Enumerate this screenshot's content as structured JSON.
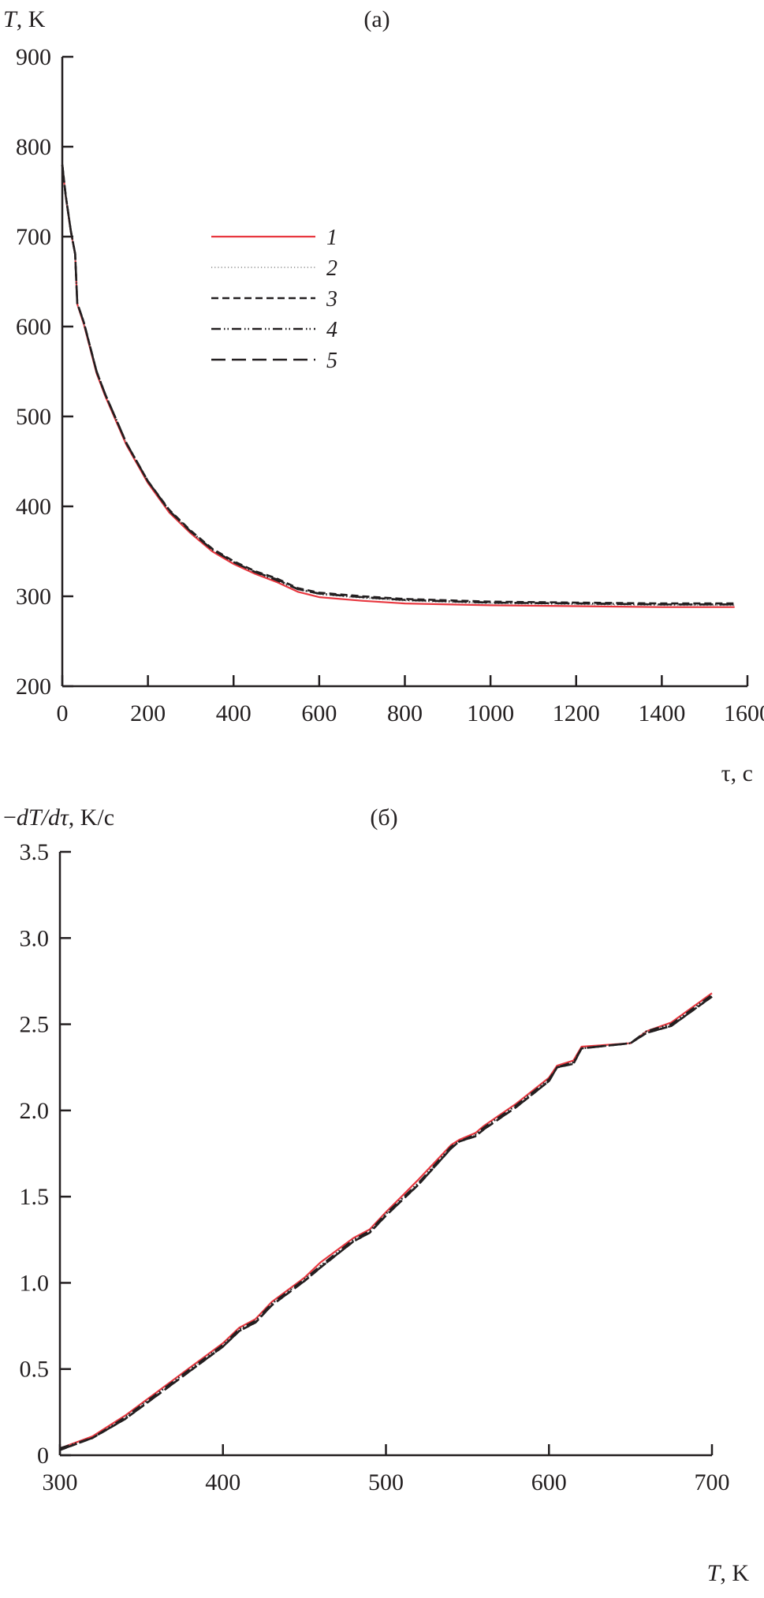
{
  "chart_data": [
    {
      "type": "line",
      "panel_label": "(a)",
      "ylabel_var": "T",
      "ylabel_unit": ", K",
      "xlabel": "τ, c",
      "xlim": [
        0,
        1600
      ],
      "ylim": [
        200,
        900
      ],
      "xticks": [
        0,
        200,
        400,
        600,
        800,
        1000,
        1200,
        1400,
        1600
      ],
      "yticks": [
        200,
        300,
        400,
        500,
        600,
        700,
        800,
        900
      ],
      "grid": false,
      "legend_placement": "upper-middle-left",
      "x": [
        0,
        8,
        20,
        30,
        35,
        50,
        80,
        100,
        150,
        200,
        250,
        300,
        350,
        400,
        450,
        500,
        550,
        600,
        700,
        800,
        1000,
        1200,
        1400,
        1570
      ],
      "series": [
        {
          "name": "1",
          "color": "#e8373f",
          "style": "solid",
          "values": [
            780,
            745,
            705,
            680,
            625,
            603,
            548,
            523,
            468,
            426,
            393,
            370,
            350,
            336,
            325,
            316,
            305,
            299,
            295,
            292,
            290,
            289,
            288,
            288
          ]
        },
        {
          "name": "2",
          "color": "#888888",
          "style": "dotted",
          "values": [
            780,
            746,
            706,
            681,
            626,
            605,
            550,
            525,
            470,
            428,
            395,
            372,
            352,
            338,
            327,
            318,
            308,
            302,
            298,
            295,
            292,
            291,
            290,
            290
          ]
        },
        {
          "name": "3",
          "color": "#231f20",
          "style": "dashed",
          "values": [
            780,
            746,
            706,
            681,
            626,
            605,
            550,
            525,
            470,
            428,
            396,
            373,
            353,
            339,
            328,
            320,
            309,
            304,
            300,
            297,
            294,
            293,
            292,
            292
          ]
        },
        {
          "name": "4",
          "color": "#231f20",
          "style": "dash-dot",
          "values": [
            780,
            746,
            706,
            681,
            626,
            605,
            550,
            525,
            470,
            428,
            395,
            372,
            352,
            338,
            327,
            318,
            308,
            303,
            299,
            296,
            293,
            292,
            291,
            291
          ]
        },
        {
          "name": "5",
          "color": "#231f20",
          "style": "long-dash",
          "values": [
            780,
            746,
            706,
            681,
            626,
            605,
            550,
            525,
            470,
            428,
            395,
            372,
            352,
            338,
            327,
            319,
            308,
            303,
            299,
            296,
            293,
            292,
            291,
            291
          ]
        }
      ]
    },
    {
      "type": "line",
      "panel_label": "(б)",
      "ylabel_prefix": "−",
      "ylabel_var": "dT/dτ",
      "ylabel_unit": ", K/c",
      "xlabel_var": "T",
      "xlabel_unit": ", K",
      "xlim": [
        300,
        700
      ],
      "ylim": [
        0,
        3.5
      ],
      "xticks": [
        300,
        400,
        500,
        600,
        700
      ],
      "yticks": [
        "0",
        "0.5",
        "1.0",
        "1.5",
        "2.0",
        "2.5",
        "3.0",
        "3.5"
      ],
      "grid": false,
      "x": [
        300,
        320,
        340,
        360,
        380,
        400,
        410,
        420,
        430,
        450,
        460,
        480,
        490,
        500,
        520,
        540,
        545,
        555,
        560,
        580,
        600,
        605,
        615,
        620,
        650,
        660,
        675,
        700
      ],
      "series": [
        {
          "name": "1",
          "color": "#e8373f",
          "style": "solid",
          "values": [
            0.04,
            0.11,
            0.23,
            0.37,
            0.51,
            0.65,
            0.74,
            0.79,
            0.89,
            1.03,
            1.12,
            1.26,
            1.31,
            1.41,
            1.6,
            1.8,
            1.83,
            1.87,
            1.91,
            2.04,
            2.19,
            2.26,
            2.29,
            2.37,
            2.39,
            2.46,
            2.51,
            2.68
          ]
        },
        {
          "name": "2",
          "color": "#888888",
          "style": "dotted",
          "values": [
            0.04,
            0.1,
            0.22,
            0.36,
            0.5,
            0.64,
            0.73,
            0.78,
            0.88,
            1.02,
            1.1,
            1.25,
            1.3,
            1.4,
            1.58,
            1.79,
            1.82,
            1.86,
            1.9,
            2.03,
            2.18,
            2.25,
            2.28,
            2.36,
            2.39,
            2.46,
            2.5,
            2.67
          ]
        },
        {
          "name": "3",
          "color": "#231f20",
          "style": "dashed",
          "values": [
            0.03,
            0.1,
            0.21,
            0.35,
            0.49,
            0.63,
            0.72,
            0.77,
            0.87,
            1.01,
            1.09,
            1.24,
            1.29,
            1.39,
            1.57,
            1.78,
            1.82,
            1.85,
            1.89,
            2.02,
            2.17,
            2.25,
            2.27,
            2.36,
            2.39,
            2.45,
            2.49,
            2.66
          ]
        },
        {
          "name": "4",
          "color": "#231f20",
          "style": "dash-dot",
          "values": [
            0.04,
            0.1,
            0.22,
            0.36,
            0.5,
            0.64,
            0.73,
            0.78,
            0.88,
            1.02,
            1.1,
            1.25,
            1.3,
            1.4,
            1.58,
            1.79,
            1.82,
            1.86,
            1.9,
            2.03,
            2.18,
            2.25,
            2.28,
            2.36,
            2.39,
            2.46,
            2.5,
            2.67
          ]
        },
        {
          "name": "5",
          "color": "#231f20",
          "style": "long-dash",
          "values": [
            0.03,
            0.1,
            0.21,
            0.35,
            0.49,
            0.63,
            0.72,
            0.77,
            0.87,
            1.01,
            1.09,
            1.24,
            1.29,
            1.39,
            1.57,
            1.78,
            1.82,
            1.85,
            1.89,
            2.02,
            2.17,
            2.25,
            2.27,
            2.36,
            2.39,
            2.45,
            2.49,
            2.66
          ]
        }
      ]
    }
  ]
}
